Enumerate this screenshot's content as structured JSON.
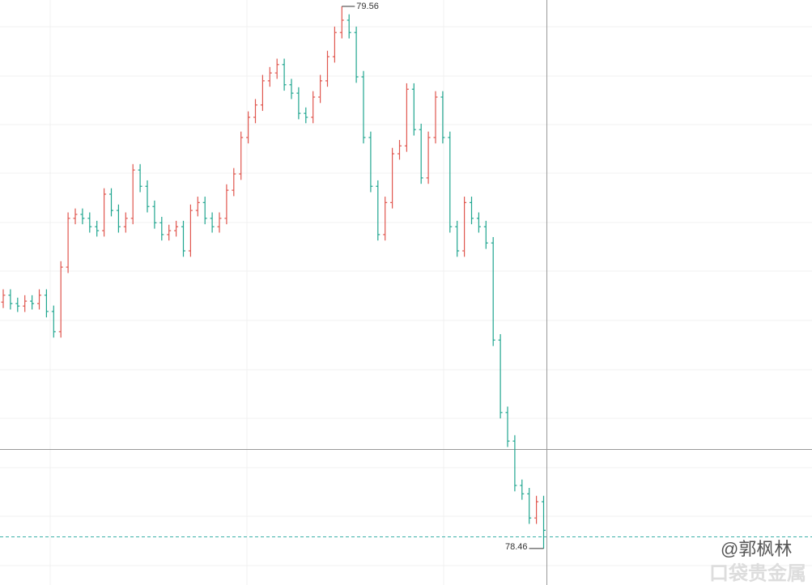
{
  "chart_data": {
    "type": "ohlc",
    "up_color": "#e0564e",
    "down_color": "#1fa58f",
    "ylim": [
      78.386,
      79.573
    ],
    "max_label": 79.56,
    "min_label": 78.46,
    "watermark": "@郭枫林",
    "brand": "口袋贵金属",
    "open": [
      78.96,
      78.974,
      78.957,
      78.952,
      78.962,
      78.957,
      78.974,
      78.941,
      78.9,
      79.031,
      79.13,
      79.138,
      79.13,
      79.113,
      79.105,
      79.179,
      79.146,
      79.113,
      79.13,
      79.228,
      79.195,
      79.154,
      79.121,
      79.097,
      79.105,
      79.113,
      79.064,
      79.146,
      79.162,
      79.13,
      79.113,
      79.13,
      79.187,
      79.22,
      79.294,
      79.335,
      79.36,
      79.409,
      79.425,
      79.442,
      79.401,
      79.384,
      79.343,
      79.335,
      79.376,
      79.409,
      79.458,
      79.507,
      79.532,
      79.507,
      79.417,
      79.294,
      79.195,
      79.097,
      79.162,
      79.261,
      79.277,
      79.392,
      79.31,
      79.212,
      79.294,
      79.376,
      79.294,
      79.113,
      79.064,
      79.162,
      79.13,
      79.113,
      79.08,
      78.883,
      78.736,
      78.678,
      78.588,
      78.571,
      78.522,
      78.555
    ],
    "high": [
      78.986,
      78.986,
      78.969,
      78.974,
      78.974,
      78.986,
      78.986,
      78.953,
      79.043,
      79.142,
      79.15,
      79.15,
      79.142,
      79.125,
      79.191,
      79.191,
      79.158,
      79.142,
      79.24,
      79.24,
      79.207,
      79.166,
      79.133,
      79.117,
      79.125,
      79.125,
      79.158,
      79.174,
      79.174,
      79.142,
      79.142,
      79.199,
      79.232,
      79.306,
      79.347,
      79.372,
      79.421,
      79.437,
      79.454,
      79.454,
      79.413,
      79.396,
      79.355,
      79.388,
      79.421,
      79.47,
      79.519,
      79.56,
      79.544,
      79.519,
      79.429,
      79.306,
      79.207,
      79.174,
      79.273,
      79.289,
      79.404,
      79.404,
      79.322,
      79.306,
      79.388,
      79.388,
      79.306,
      79.125,
      79.174,
      79.174,
      79.142,
      79.125,
      79.092,
      78.895,
      78.748,
      78.69,
      78.6,
      78.583,
      78.567,
      78.567
    ],
    "low": [
      78.948,
      78.945,
      78.94,
      78.94,
      78.945,
      78.945,
      78.929,
      78.888,
      78.888,
      79.019,
      79.118,
      79.118,
      79.101,
      79.093,
      79.093,
      79.134,
      79.101,
      79.101,
      79.118,
      79.183,
      79.142,
      79.109,
      79.085,
      79.085,
      79.093,
      79.052,
      79.052,
      79.134,
      79.118,
      79.101,
      79.101,
      79.118,
      79.175,
      79.208,
      79.282,
      79.323,
      79.348,
      79.397,
      79.413,
      79.389,
      79.372,
      79.331,
      79.323,
      79.323,
      79.364,
      79.397,
      79.446,
      79.495,
      79.495,
      79.405,
      79.282,
      79.183,
      79.085,
      79.085,
      79.15,
      79.249,
      79.265,
      79.298,
      79.2,
      79.2,
      79.282,
      79.282,
      79.101,
      79.052,
      79.052,
      79.118,
      79.101,
      79.068,
      78.871,
      78.724,
      78.666,
      78.576,
      78.559,
      78.51,
      78.51,
      78.46
    ],
    "close": [
      78.974,
      78.957,
      78.952,
      78.962,
      78.957,
      78.974,
      78.941,
      78.9,
      79.031,
      79.13,
      79.138,
      79.13,
      79.113,
      79.105,
      79.179,
      79.146,
      79.113,
      79.13,
      79.228,
      79.195,
      79.154,
      79.121,
      79.097,
      79.105,
      79.113,
      79.064,
      79.146,
      79.162,
      79.13,
      79.113,
      79.13,
      79.187,
      79.22,
      79.294,
      79.335,
      79.36,
      79.409,
      79.425,
      79.442,
      79.401,
      79.384,
      79.343,
      79.335,
      79.376,
      79.409,
      79.458,
      79.507,
      79.532,
      79.507,
      79.417,
      79.294,
      79.195,
      79.097,
      79.162,
      79.261,
      79.277,
      79.392,
      79.31,
      79.212,
      79.294,
      79.376,
      79.294,
      79.113,
      79.064,
      79.162,
      79.13,
      79.113,
      79.08,
      78.883,
      78.736,
      78.678,
      78.588,
      78.571,
      78.522,
      78.555,
      78.497
    ]
  }
}
